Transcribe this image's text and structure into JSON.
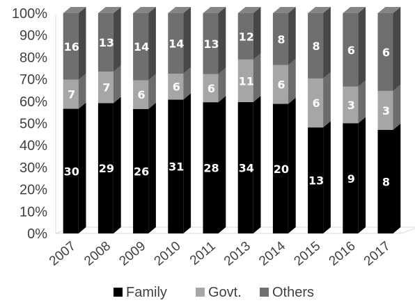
{
  "chart_data": {
    "type": "bar",
    "stacked": true,
    "percent_stacked": true,
    "three_d": true,
    "categories": [
      "2007",
      "2008",
      "2009",
      "2010",
      "2011",
      "2013",
      "2014",
      "2015",
      "2016",
      "2017"
    ],
    "series": [
      {
        "name": "Family",
        "values": [
          30,
          29,
          26,
          31,
          28,
          34,
          20,
          13,
          9,
          8
        ],
        "color": "#000000"
      },
      {
        "name": "Govt.",
        "values": [
          7,
          7,
          6,
          6,
          6,
          11,
          6,
          6,
          3,
          3
        ],
        "color": "#a6a6a6"
      },
      {
        "name": "Others",
        "values": [
          16,
          13,
          14,
          14,
          13,
          12,
          8,
          8,
          6,
          6
        ],
        "color": "#6f6f6f"
      }
    ],
    "y_ticks": [
      "0%",
      "10%",
      "20%",
      "30%",
      "40%",
      "50%",
      "60%",
      "70%",
      "80%",
      "90%",
      "100%"
    ],
    "ylim": [
      0,
      100
    ],
    "grid": false,
    "legend_position": "bottom"
  }
}
